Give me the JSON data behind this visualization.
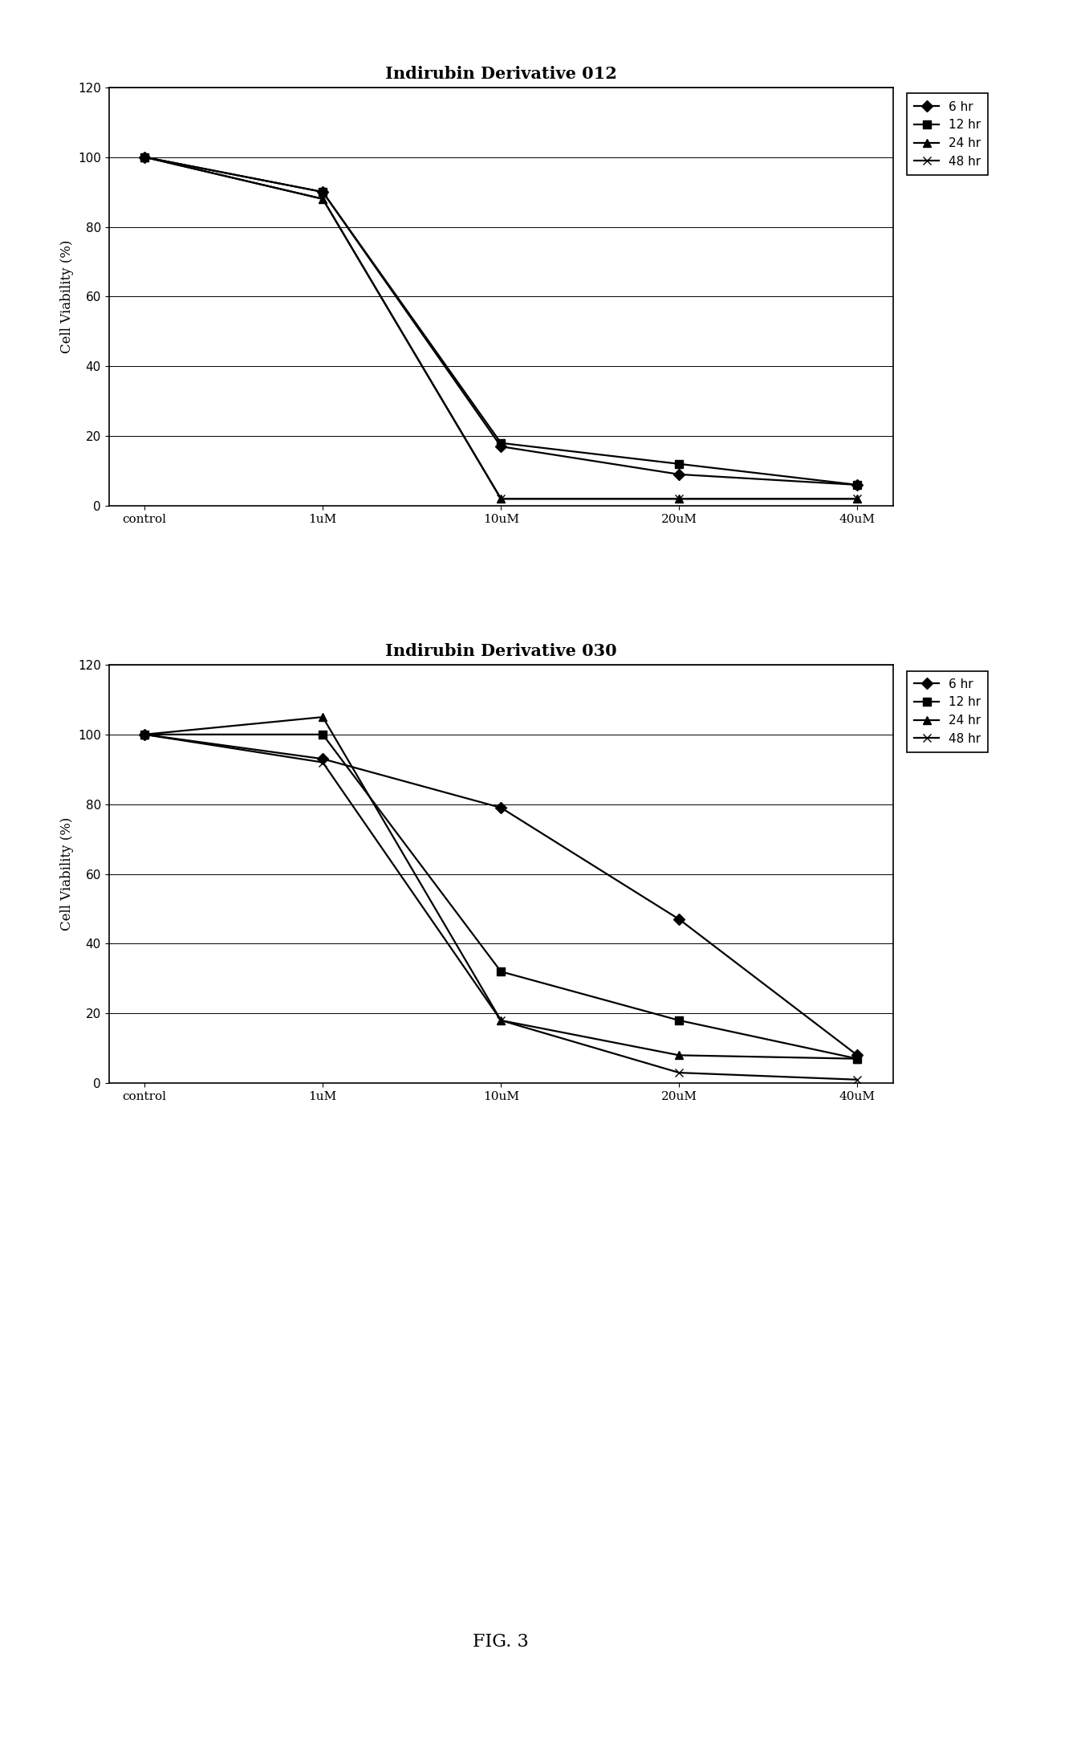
{
  "chart1": {
    "title": "Indirubin Derivative 012",
    "series": {
      "6 hr": [
        100,
        90,
        17,
        9,
        6
      ],
      "12 hr": [
        100,
        90,
        18,
        12,
        6
      ],
      "24 hr": [
        100,
        88,
        2,
        2,
        2
      ],
      "48 hr": [
        100,
        88,
        2,
        2,
        2
      ]
    }
  },
  "chart2": {
    "title": "Indirubin Derivative 030",
    "series": {
      "6 hr": [
        100,
        93,
        79,
        47,
        8
      ],
      "12 hr": [
        100,
        100,
        32,
        18,
        7
      ],
      "24 hr": [
        100,
        105,
        18,
        8,
        7
      ],
      "48 hr": [
        100,
        92,
        18,
        3,
        1
      ]
    }
  },
  "x_labels": [
    "control",
    "1uM",
    "10uM",
    "20uM",
    "40uM"
  ],
  "ylabel": "Cell Viability (%)",
  "ylim": [
    0,
    120
  ],
  "yticks": [
    0,
    20,
    40,
    60,
    80,
    100,
    120
  ],
  "legend_labels": [
    "6 hr",
    "12 hr",
    "24 hr",
    "48 hr"
  ],
  "markers": [
    "D",
    "s",
    "^",
    "x"
  ],
  "line_color": "#000000",
  "background_color": "#ffffff",
  "fig_caption": "FIG. 3",
  "title_fontsize": 15,
  "label_fontsize": 12,
  "tick_fontsize": 11,
  "legend_fontsize": 11
}
